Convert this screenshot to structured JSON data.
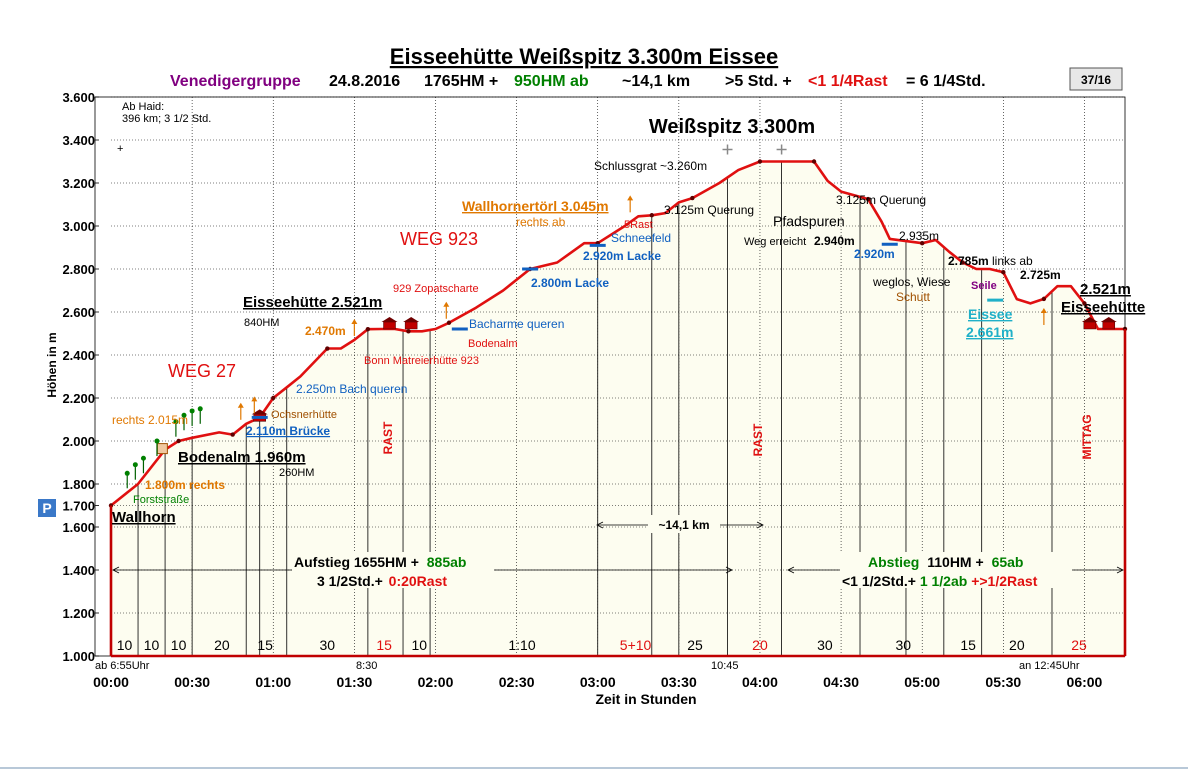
{
  "header": {
    "title": "Eisseehütte  Weißspitz 3.300m  Eissee",
    "group": "Venedigergruppe",
    "date": "24.8.2016",
    "hm_up": "1765HM +",
    "hm_down": "950HM ab",
    "distance": "~14,1 km",
    "time1": ">5 Std. +",
    "rest": "<1 1/4Rast",
    "total": "= 6 1/4Std.",
    "page_badge": "37/16",
    "parking_badge": "P",
    "note_line1": "Ab Haid:",
    "note_line2": "396 km; 3 1/2 Std.",
    "plus_mark": "+"
  },
  "colors": {
    "profile": "#e01010",
    "fill": "#fdfdf0",
    "frame": "#c00000",
    "green": "#008000",
    "orange": "#e07800",
    "blue": "#1060c0",
    "cyan": "#20b0c8",
    "purple": "#800080",
    "red": "#e01010"
  },
  "chart_data": {
    "type": "area",
    "title": "Eisseehütte  Weißspitz 3.300m  Eissee",
    "xlabel": "Zeit in  Stunden",
    "ylabel": "Höhen in m",
    "x_unit": "minutes",
    "xlim": [
      0,
      375
    ],
    "ylim": [
      1000,
      3600
    ],
    "y_ticks": [
      "1.000",
      "1.200",
      "1.400",
      "1.600",
      "1.700",
      "1.800",
      "2.000",
      "2.200",
      "2.400",
      "2.600",
      "2.800",
      "3.000",
      "3.200",
      "3.400",
      "3.600"
    ],
    "y_tick_values": [
      1000,
      1200,
      1400,
      1600,
      1700,
      1800,
      2000,
      2200,
      2400,
      2600,
      2800,
      3000,
      3200,
      3400,
      3600
    ],
    "x_ticks": [
      "00:00",
      "00:30",
      "01:00",
      "01:30",
      "02:00",
      "02:30",
      "03:00",
      "03:30",
      "04:00",
      "04:30",
      "05:00",
      "05:30",
      "06:00"
    ],
    "x_tick_values": [
      0,
      30,
      60,
      90,
      120,
      150,
      180,
      210,
      240,
      270,
      300,
      330,
      360
    ],
    "grid": true,
    "series": [
      {
        "x": [
          0,
          10,
          20,
          25,
          30,
          40,
          45,
          50,
          55,
          60,
          65,
          70,
          80,
          85,
          90,
          95,
          100,
          105,
          110,
          115,
          120,
          125,
          135,
          145,
          155,
          165,
          175,
          180,
          190,
          195,
          200,
          205,
          210,
          215,
          225,
          232,
          240,
          245,
          252,
          260,
          265,
          270,
          280,
          285,
          288,
          300,
          305,
          310,
          315,
          320,
          325,
          330,
          335,
          340,
          345,
          350,
          355,
          360,
          365,
          375
        ],
        "y": [
          1700,
          1800,
          1960,
          2000,
          2015,
          2040,
          2030,
          2080,
          2110,
          2200,
          2250,
          2300,
          2430,
          2430,
          2470,
          2520,
          2521,
          2521,
          2510,
          2510,
          2521,
          2550,
          2620,
          2700,
          2800,
          2830,
          2920,
          2920,
          3000,
          3045,
          3050,
          3060,
          3110,
          3130,
          3200,
          3260,
          3300,
          3300,
          3300,
          3300,
          3210,
          3160,
          3125,
          3020,
          2940,
          2920,
          2935,
          2880,
          2830,
          2800,
          2800,
          2785,
          2660,
          2640,
          2661,
          2720,
          2720,
          2640,
          2521,
          2521
        ]
      }
    ],
    "ticks_annotations": {
      "start_time": "ab 6:55Uhr",
      "t830": "8:30",
      "t1045": "10:45",
      "end_time": "an 12:45Uhr"
    },
    "segments": [
      {
        "x": 5,
        "label": "10"
      },
      {
        "x": 15,
        "label": "10"
      },
      {
        "x": 25,
        "label": "10"
      },
      {
        "x": 41,
        "label": "20"
      },
      {
        "x": 57,
        "label": "15"
      },
      {
        "x": 80,
        "label": "30"
      },
      {
        "x": 101,
        "label": "15"
      },
      {
        "x": 114,
        "label": "10"
      },
      {
        "x": 152,
        "label": "1:10"
      },
      {
        "x": 194,
        "label": "5+10"
      },
      {
        "x": 216,
        "label": "25"
      },
      {
        "x": 240,
        "label": "20"
      },
      {
        "x": 264,
        "label": "30"
      },
      {
        "x": 293,
        "label": "30"
      },
      {
        "x": 317,
        "label": "15"
      },
      {
        "x": 335,
        "label": "20"
      },
      {
        "x": 358,
        "label": "25"
      }
    ],
    "vlines": [
      10,
      20,
      30,
      50,
      55,
      65,
      95,
      108,
      118,
      180,
      200,
      210,
      228,
      248,
      277,
      294,
      308,
      322,
      348,
      375
    ],
    "annotations": [
      {
        "key": "wallhorn",
        "text": "Wallhorn",
        "x": 0,
        "y": 1700
      },
      {
        "key": "forststrasse",
        "text": "Forststraße",
        "x": 8,
        "y": 1800
      },
      {
        "key": "rechts1800",
        "text": "1.800m rechts",
        "x": 8,
        "y": 1800
      },
      {
        "key": "rechts2015",
        "text": "rechts 2.015m",
        "x": 18,
        "y": 2015
      },
      {
        "key": "bodenalm",
        "text": "Bodenalm 1.960m",
        "x": 22,
        "y": 1960
      },
      {
        "key": "hm260",
        "text": "260HM",
        "x": 60,
        "y": 1960
      },
      {
        "key": "bruecke",
        "text": "2.110m Brücke",
        "x": 55,
        "y": 2110
      },
      {
        "key": "ochsner",
        "text": "Ochsnerhütte",
        "x": 55,
        "y": 2110
      },
      {
        "key": "bach",
        "text": "2.250m Bach queren",
        "x": 65,
        "y": 2250
      },
      {
        "key": "eisseehuette1",
        "text": "Eisseehütte 2.521m",
        "x": 50,
        "y": 2521
      },
      {
        "key": "hm840",
        "text": "840HM",
        "x": 50,
        "y": 2521
      },
      {
        "key": "m2470",
        "text": "2.470m",
        "x": 85,
        "y": 2470
      },
      {
        "key": "bonn",
        "text": "Bonn Matreierhütte 923",
        "x": 100,
        "y": 2521
      },
      {
        "key": "zopat",
        "text": "929 Zopatscharte",
        "x": 103,
        "y": 2521
      },
      {
        "key": "bacharme",
        "text": "Bacharme queren",
        "x": 125,
        "y": 2550
      },
      {
        "key": "bodenalm2",
        "text": "Bodenalm",
        "x": 125,
        "y": 2521
      },
      {
        "key": "lacke2800",
        "text": "2.800m Lacke",
        "x": 155,
        "y": 2800
      },
      {
        "key": "wallhornertoerl",
        "text": "Wallhornertörl  3.045m",
        "x": 195,
        "y": 3045
      },
      {
        "key": "rechtsab",
        "text": "rechts ab",
        "x": 160,
        "y": 3000
      },
      {
        "key": "rast5",
        "text": "5Rast",
        "x": 195,
        "y": 3045
      },
      {
        "key": "schneefeld",
        "text": "Schneefeld",
        "x": 180,
        "y": 2930
      },
      {
        "key": "lacke2920",
        "text": "2.920m Lacke",
        "x": 180,
        "y": 2920
      },
      {
        "key": "querung1",
        "text": "3.125m Querung",
        "x": 205,
        "y": 3110
      },
      {
        "key": "schlussgrat",
        "text": "Schlussgrat ~3.260m",
        "x": 225,
        "y": 3260
      },
      {
        "key": "summit",
        "text": "Weißspitz 3.300m",
        "x": 228,
        "y": 3300
      },
      {
        "key": "pfadspuren",
        "text": "Pfadspuren",
        "x": 260,
        "y": 3000
      },
      {
        "key": "wegerreicht",
        "text": "Weg erreicht",
        "x": 260,
        "y": 2940
      },
      {
        "key": "m2940",
        "text": "2.940m",
        "x": 260,
        "y": 2940
      },
      {
        "key": "querung2",
        "text": "3.125m Querung",
        "x": 270,
        "y": 3125
      },
      {
        "key": "m2935",
        "text": "2.935m",
        "x": 300,
        "y": 2935
      },
      {
        "key": "m2920b",
        "text": "2.920m",
        "x": 288,
        "y": 2920
      },
      {
        "key": "m2785",
        "text": "2.785m",
        "x": 310,
        "y": 2785
      },
      {
        "key": "linksab",
        "text": "links ab",
        "x": 315,
        "y": 2785
      },
      {
        "key": "m2725",
        "text": "2.725m",
        "x": 335,
        "y": 2725
      },
      {
        "key": "weglos",
        "text": "weglos, Wiese",
        "x": 280,
        "y": 2700
      },
      {
        "key": "schutt",
        "text": "Schutt",
        "x": 290,
        "y": 2650
      },
      {
        "key": "seile",
        "text": "Seile",
        "x": 325,
        "y": 2700
      },
      {
        "key": "eissee",
        "text": "Eissee",
        "x": 325,
        "y": 2661
      },
      {
        "key": "m2661",
        "text": "2.661m",
        "x": 325,
        "y": 2661
      },
      {
        "key": "m2521end",
        "text": "2.521m",
        "x": 365,
        "y": 2521
      },
      {
        "key": "eisseehuette2",
        "text": "Eisseehütte",
        "x": 365,
        "y": 2521
      },
      {
        "key": "weg27",
        "text": "WEG 27",
        "x": 20,
        "y": 2300
      },
      {
        "key": "weg923",
        "text": "WEG 923",
        "x": 110,
        "y": 2950
      }
    ],
    "rast_labels": [
      "RAST",
      "RAST",
      "MITTAG"
    ],
    "aufstieg": {
      "line1a": "Aufstieg 1655HM +",
      "line1b": "885ab",
      "line2a": "3 1/2Std.+",
      "line2b": "0:20Rast"
    },
    "abstieg": {
      "line1a": "Abstieg",
      "line1b": "110HM +",
      "line1c": "65ab",
      "line2a": "<1 1/2Std.+",
      "line2b": "1 1/2ab",
      "line2c": "+>1/2Rast"
    },
    "distance_label": "~14,1 km"
  }
}
